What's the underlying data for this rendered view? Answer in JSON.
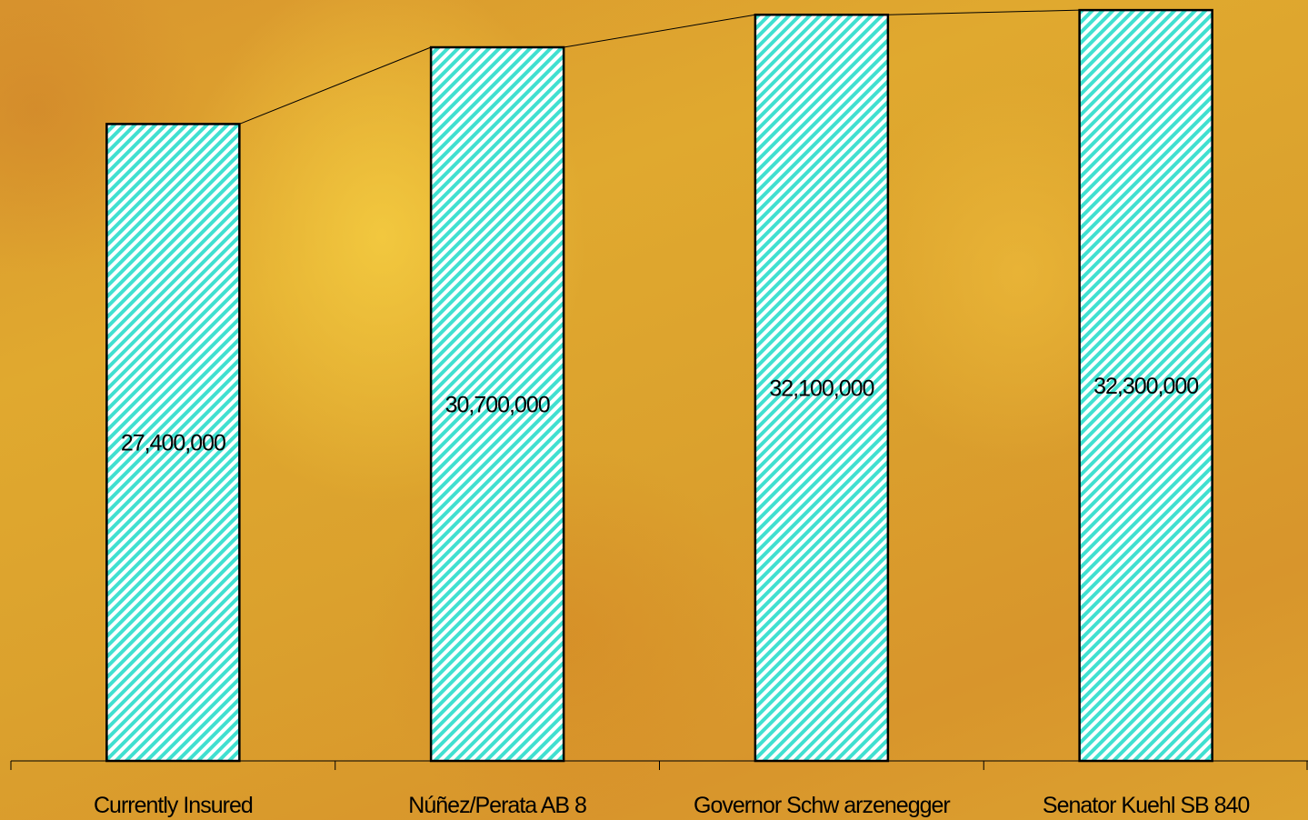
{
  "chart_data": {
    "type": "bar",
    "categories": [
      "Currently Insured",
      "Núñez/Perata AB 8",
      "Governor Schw arzenegger",
      "Senator Kuehl SB 840"
    ],
    "values": [
      27400000,
      30700000,
      32100000,
      32300000
    ],
    "value_labels": [
      "27,400,000",
      "30,700,000",
      "32,100,000",
      "32,300,000"
    ],
    "title": "",
    "xlabel": "",
    "ylabel": "",
    "ylim": [
      0,
      32500000
    ],
    "grid": false,
    "legend": "none",
    "connector_line": true,
    "colors": {
      "hatch_fg": "#40e0d0",
      "hatch_bg": "#ffffff",
      "bar_border": "#000000",
      "axis": "#000000"
    }
  }
}
